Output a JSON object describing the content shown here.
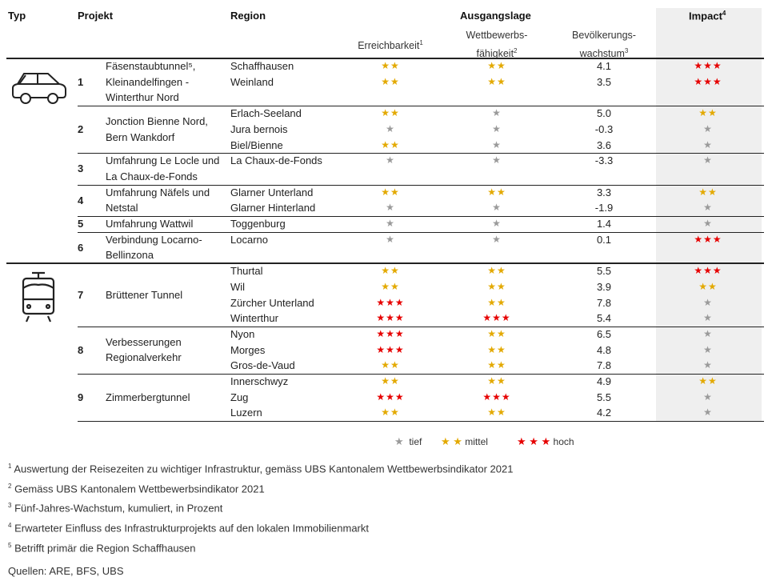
{
  "header": {
    "typ": "Typ",
    "projekt": "Projekt",
    "region": "Region",
    "ausgangslage": "Ausgangslage",
    "impact": "Impact",
    "impact_sup": "4",
    "erreichbarkeit": "Erreichbarkeit",
    "erreichbarkeit_sup": "1",
    "wettbewerb_1": "Wettbewerbs-",
    "wettbewerb_2": "fähigkeit",
    "wettbewerb_sup": "2",
    "bevoelkerung_1": "Bevölkerungs-",
    "bevoelkerung_2": "wachstum",
    "bevoelkerung_sup": "3"
  },
  "colors": {
    "star_1": "#9a9a9a",
    "star_2": "#e3a900",
    "star_3": "#e60000",
    "impact_bg": "#efefef"
  },
  "types": [
    {
      "icon": "car-icon",
      "projects": [
        0,
        1,
        2,
        3,
        4,
        5
      ]
    },
    {
      "icon": "train-icon",
      "projects": [
        6,
        7,
        8
      ]
    }
  ],
  "projects": [
    {
      "number": "1",
      "name_lines": [
        "Fäsenstaubtunnel⁵,",
        "Kleinandelfingen -",
        "Winterthur Nord"
      ],
      "rows_total": 3,
      "regions": [
        {
          "region": "Schaffhausen",
          "erreichbarkeit": 2,
          "wettbewerb": 2,
          "wachstum": "4.1",
          "impact": 3
        },
        {
          "region": "Weinland",
          "erreichbarkeit": 2,
          "wettbewerb": 2,
          "wachstum": "3.5",
          "impact": 3
        }
      ]
    },
    {
      "number": "2",
      "name_lines": [
        "Jonction Bienne Nord,",
        "Bern Wankdorf"
      ],
      "rows_total": 3,
      "regions": [
        {
          "region": "Erlach-Seeland",
          "erreichbarkeit": 2,
          "wettbewerb": 1,
          "wachstum": "5.0",
          "impact": 2
        },
        {
          "region": "Jura bernois",
          "erreichbarkeit": 1,
          "wettbewerb": 1,
          "wachstum": "-0.3",
          "impact": 1
        },
        {
          "region": "Biel/Bienne",
          "erreichbarkeit": 2,
          "wettbewerb": 1,
          "wachstum": "3.6",
          "impact": 1
        }
      ]
    },
    {
      "number": "3",
      "name_lines": [
        "Umfahrung Le Locle und",
        "La Chaux-de-Fonds"
      ],
      "rows_total": 2,
      "regions": [
        {
          "region": "La Chaux-de-Fonds",
          "erreichbarkeit": 1,
          "wettbewerb": 1,
          "wachstum": "-3.3",
          "impact": 1
        }
      ]
    },
    {
      "number": "4",
      "name_lines": [
        "Umfahrung Näfels und",
        "Netstal"
      ],
      "rows_total": 2,
      "regions": [
        {
          "region": "Glarner Unterland",
          "erreichbarkeit": 2,
          "wettbewerb": 2,
          "wachstum": "3.3",
          "impact": 2
        },
        {
          "region": "Glarner Hinterland",
          "erreichbarkeit": 1,
          "wettbewerb": 1,
          "wachstum": "-1.9",
          "impact": 1
        }
      ]
    },
    {
      "number": "5",
      "name_lines": [
        "Umfahrung Wattwil"
      ],
      "rows_total": 1,
      "regions": [
        {
          "region": "Toggenburg",
          "erreichbarkeit": 1,
          "wettbewerb": 1,
          "wachstum": "1.4",
          "impact": 1
        }
      ]
    },
    {
      "number": "6",
      "name_lines": [
        "Verbindung Locarno-",
        "Bellinzona"
      ],
      "rows_total": 2,
      "regions": [
        {
          "region": "Locarno",
          "erreichbarkeit": 1,
          "wettbewerb": 1,
          "wachstum": "0.1",
          "impact": 3
        }
      ]
    },
    {
      "number": "7",
      "name_lines": [
        "Brüttener Tunnel"
      ],
      "rows_total": 4,
      "regions": [
        {
          "region": "Thurtal",
          "erreichbarkeit": 2,
          "wettbewerb": 2,
          "wachstum": "5.5",
          "impact": 3
        },
        {
          "region": "Wil",
          "erreichbarkeit": 2,
          "wettbewerb": 2,
          "wachstum": "3.9",
          "impact": 2
        },
        {
          "region": "Zürcher Unterland",
          "erreichbarkeit": 3,
          "wettbewerb": 2,
          "wachstum": "7.8",
          "impact": 1
        },
        {
          "region": "Winterthur",
          "erreichbarkeit": 3,
          "wettbewerb": 3,
          "wachstum": "5.4",
          "impact": 1
        }
      ]
    },
    {
      "number": "8",
      "name_lines": [
        "Verbesserungen",
        "Regionalverkehr"
      ],
      "rows_total": 3,
      "regions": [
        {
          "region": "Nyon",
          "erreichbarkeit": 3,
          "wettbewerb": 2,
          "wachstum": "6.5",
          "impact": 1
        },
        {
          "region": "Morges",
          "erreichbarkeit": 3,
          "wettbewerb": 2,
          "wachstum": "4.8",
          "impact": 1
        },
        {
          "region": "Gros-de-Vaud",
          "erreichbarkeit": 2,
          "wettbewerb": 2,
          "wachstum": "7.8",
          "impact": 1
        }
      ]
    },
    {
      "number": "9",
      "name_lines": [
        "Zimmerbergtunnel"
      ],
      "rows_total": 3,
      "regions": [
        {
          "region": "Innerschwyz",
          "erreichbarkeit": 2,
          "wettbewerb": 2,
          "wachstum": "4.9",
          "impact": 2
        },
        {
          "region": "Zug",
          "erreichbarkeit": 3,
          "wettbewerb": 3,
          "wachstum": "5.5",
          "impact": 1
        },
        {
          "region": "Luzern",
          "erreichbarkeit": 2,
          "wettbewerb": 2,
          "wachstum": "4.2",
          "impact": 1
        }
      ]
    }
  ],
  "legend": {
    "tief": "tief",
    "mittel": "mittel",
    "hoch": "hoch"
  },
  "footnotes": [
    {
      "sup": "1",
      "text": "Auswertung der Reisezeiten zu wichtiger Infrastruktur, gemäss UBS Kantonalem Wettbewerbsindikator 2021"
    },
    {
      "sup": "2",
      "text": "Gemäss UBS Kantonalem Wettbewerbsindikator 2021"
    },
    {
      "sup": "3",
      "text": "Fünf-Jahres-Wachstum, kumuliert, in Prozent"
    },
    {
      "sup": "4",
      "text": "Erwarteter Einfluss des Infrastrukturprojekts auf den lokalen Immobilienmarkt"
    },
    {
      "sup": "5",
      "text": "Betrifft primär die Region Schaffhausen"
    }
  ],
  "sources": "Quellen: ARE, BFS, UBS"
}
